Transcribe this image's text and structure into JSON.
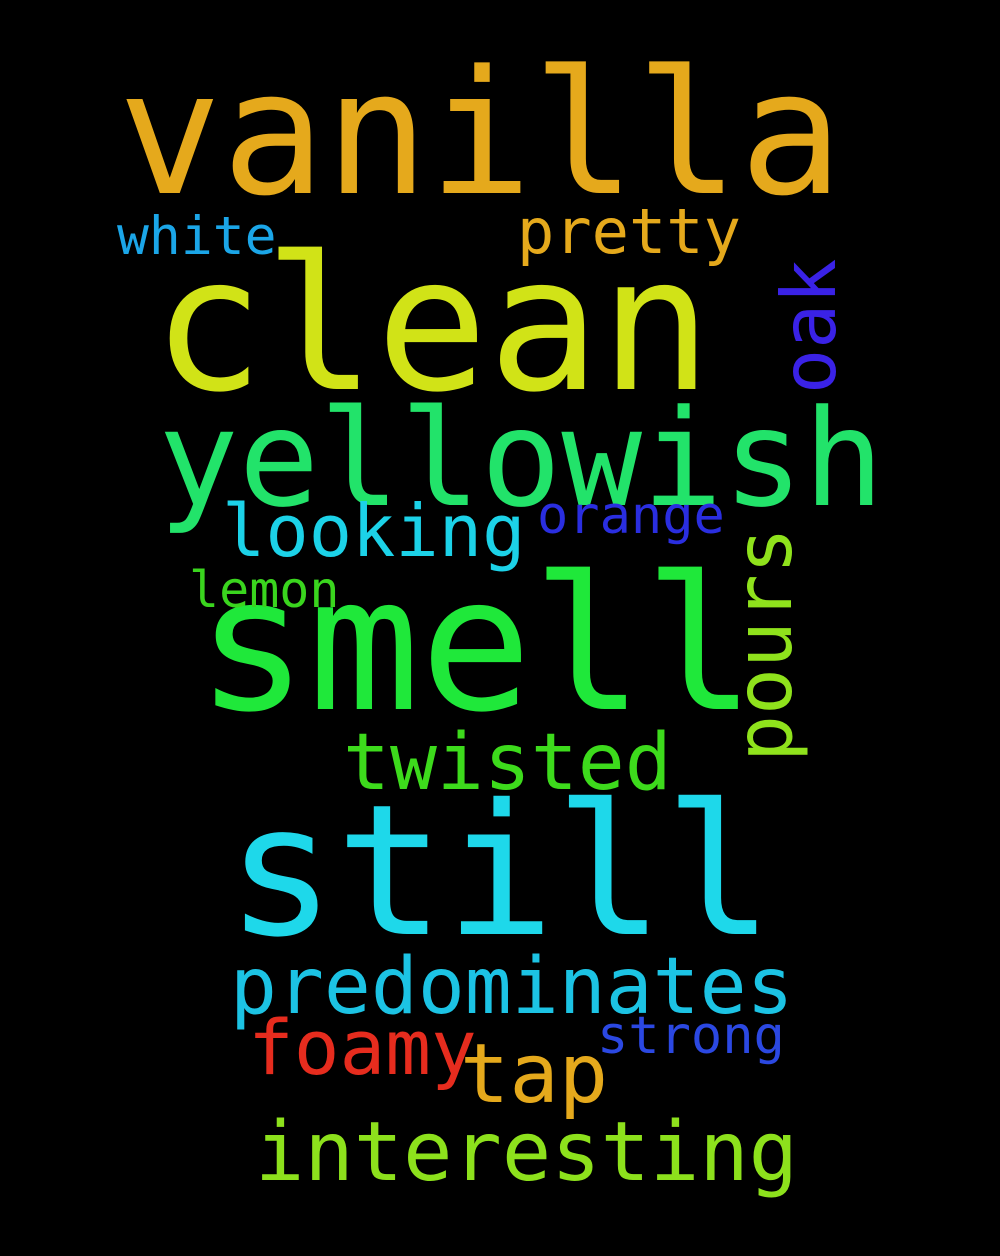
{
  "words": [
    {
      "id": "vanilla",
      "text": "vanilla",
      "color": "#e5a91c"
    },
    {
      "id": "clean",
      "text": "clean",
      "color": "#d1e317"
    },
    {
      "id": "yellowish",
      "text": "yellowish",
      "color": "#22e36a"
    },
    {
      "id": "smell",
      "text": "smell",
      "color": "#1fe83a"
    },
    {
      "id": "still",
      "text": "still",
      "color": "#1ed8ea"
    },
    {
      "id": "pretty",
      "text": "pretty",
      "color": "#e5a91c"
    },
    {
      "id": "white",
      "text": "white",
      "color": "#1ba6e8"
    },
    {
      "id": "oak",
      "text": "oak",
      "color": "#3a22e6"
    },
    {
      "id": "looking",
      "text": "looking",
      "color": "#1cd2e8"
    },
    {
      "id": "orange",
      "text": "orange",
      "color": "#2a2ee0"
    },
    {
      "id": "lemon",
      "text": "lemon",
      "color": "#3ad51e"
    },
    {
      "id": "pours",
      "text": "pours",
      "color": "#8fe21c"
    },
    {
      "id": "twisted",
      "text": "twisted",
      "color": "#3ddb1c"
    },
    {
      "id": "predominates",
      "text": "predominates",
      "color": "#1cc3e4"
    },
    {
      "id": "foamy",
      "text": "foamy",
      "color": "#e62c1e"
    },
    {
      "id": "tap",
      "text": "tap",
      "color": "#e5a91c"
    },
    {
      "id": "strong",
      "text": "strong",
      "color": "#2b48e2"
    },
    {
      "id": "interesting",
      "text": "interesting",
      "color": "#8de11c"
    }
  ]
}
